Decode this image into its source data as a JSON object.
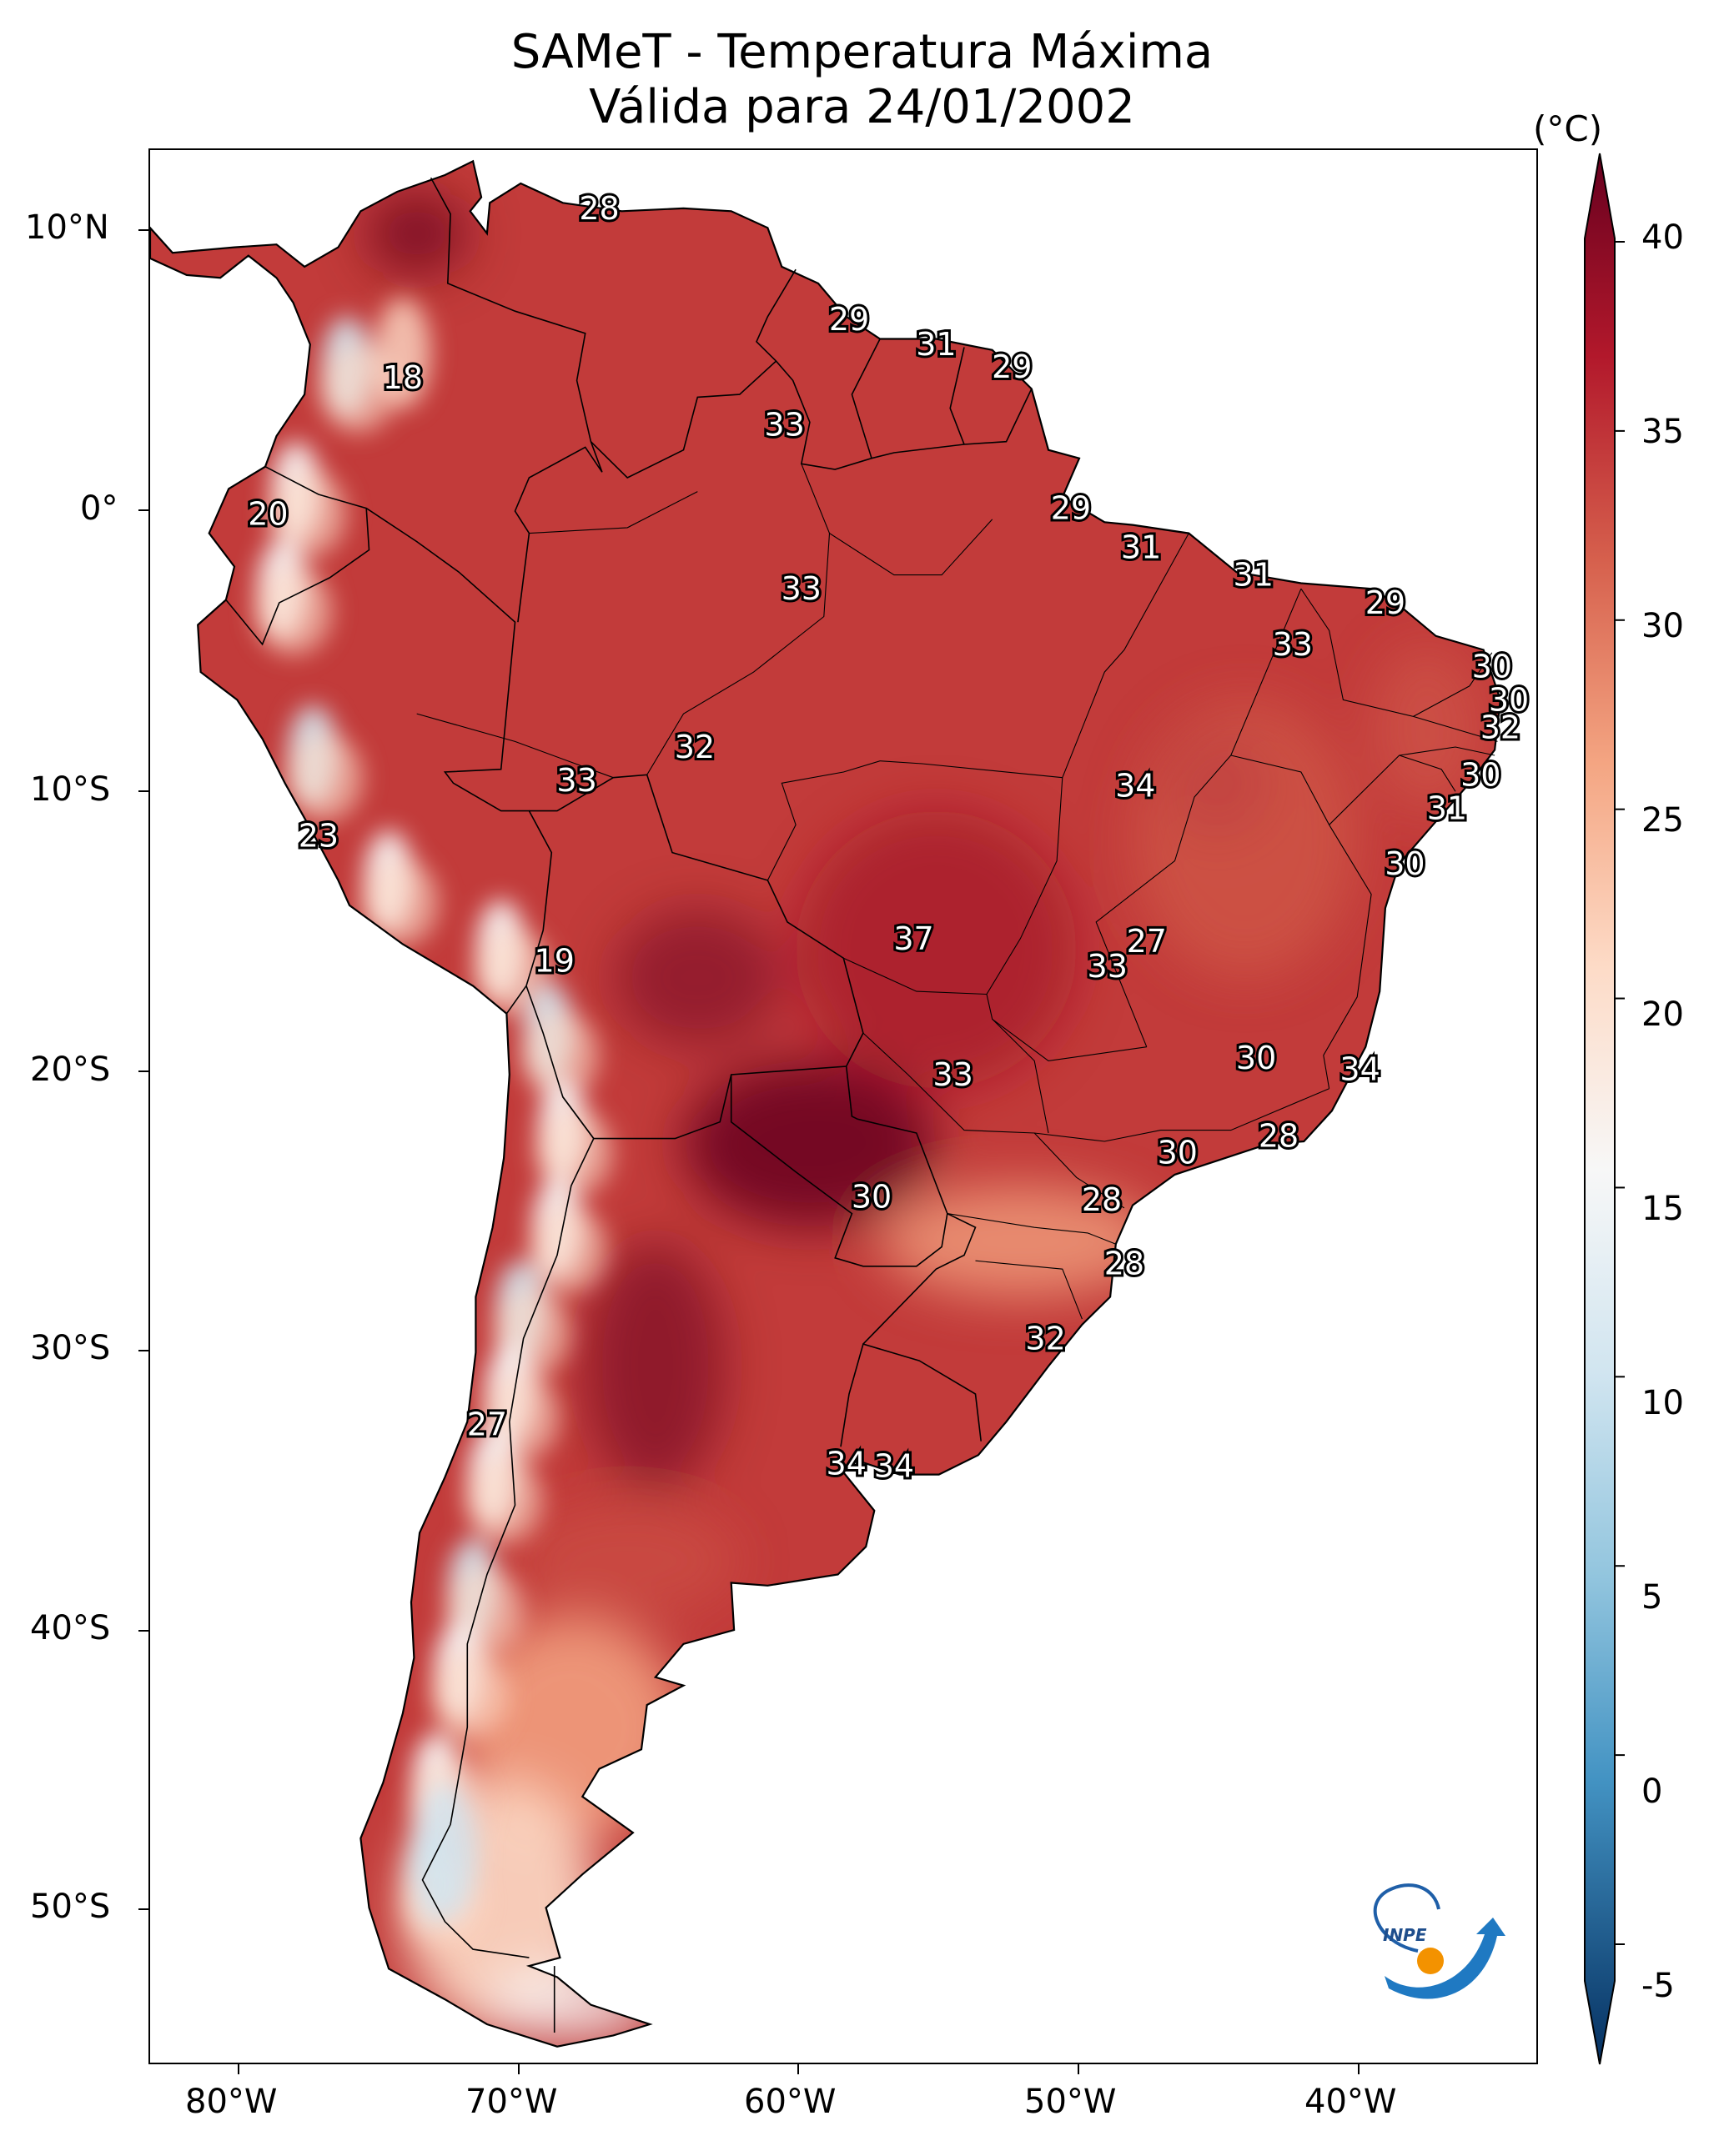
{
  "title": {
    "line1": "SAMeT - Temperatura Máxima",
    "line2": "Válida para 24/01/2002"
  },
  "axes": {
    "y_labels": [
      "10°N",
      "0°",
      "10°S",
      "20°S",
      "30°S",
      "40°S",
      "50°S"
    ],
    "x_labels": [
      "80°W",
      "70°W",
      "60°W",
      "50°W",
      "40°W"
    ]
  },
  "colorbar": {
    "unit": "(°C)",
    "ticks": [
      "40",
      "35",
      "30",
      "25",
      "20",
      "15",
      "10",
      "5",
      "0",
      "-5"
    ],
    "min": -7,
    "max": 40,
    "colors": {
      "c40": "#67001f",
      "c35": "#b2182b",
      "c30": "#d6604d",
      "c25": "#f4a582",
      "c20": "#fddbc7",
      "c15": "#f7f7f7",
      "c10": "#d1e5f0",
      "c5": "#92c5de",
      "c0": "#4393c3",
      "cm5": "#053061"
    }
  },
  "contour_labels": [
    {
      "text": "28",
      "lon": -67.0,
      "lat": 10.7
    },
    {
      "text": "18",
      "lon": -74.0,
      "lat": 4.6
    },
    {
      "text": "20",
      "lon": -78.8,
      "lat": -0.3
    },
    {
      "text": "29",
      "lon": -58.1,
      "lat": 6.7
    },
    {
      "text": "31",
      "lon": -55.0,
      "lat": 5.8
    },
    {
      "text": "29",
      "lon": -52.3,
      "lat": 5.0
    },
    {
      "text": "33",
      "lon": -60.4,
      "lat": 2.9
    },
    {
      "text": "29",
      "lon": -50.2,
      "lat": -0.1
    },
    {
      "text": "31",
      "lon": -47.7,
      "lat": -1.5
    },
    {
      "text": "31",
      "lon": -43.7,
      "lat": -2.5
    },
    {
      "text": "33",
      "lon": -59.8,
      "lat": -3.0
    },
    {
      "text": "29",
      "lon": -39.0,
      "lat": -3.5
    },
    {
      "text": "33",
      "lon": -42.3,
      "lat": -5.0
    },
    {
      "text": "30",
      "lon": -35.2,
      "lat": -5.8
    },
    {
      "text": "30",
      "lon": -34.6,
      "lat": -7.0
    },
    {
      "text": "32",
      "lon": -34.9,
      "lat": -8.0
    },
    {
      "text": "32",
      "lon": -63.6,
      "lat": -8.7
    },
    {
      "text": "33",
      "lon": -67.8,
      "lat": -9.9
    },
    {
      "text": "34",
      "lon": -47.9,
      "lat": -10.1
    },
    {
      "text": "30",
      "lon": -35.6,
      "lat": -9.7
    },
    {
      "text": "31",
      "lon": -36.8,
      "lat": -10.9
    },
    {
      "text": "23",
      "lon": -77.0,
      "lat": -11.9
    },
    {
      "text": "30",
      "lon": -38.3,
      "lat": -12.9
    },
    {
      "text": "37",
      "lon": -55.8,
      "lat": -15.6
    },
    {
      "text": "27",
      "lon": -47.5,
      "lat": -15.7
    },
    {
      "text": "33",
      "lon": -48.9,
      "lat": -16.6
    },
    {
      "text": "19",
      "lon": -68.6,
      "lat": -16.4
    },
    {
      "text": "30",
      "lon": -43.6,
      "lat": -19.9
    },
    {
      "text": "34",
      "lon": -39.9,
      "lat": -20.3
    },
    {
      "text": "33",
      "lon": -54.4,
      "lat": -20.5
    },
    {
      "text": "28",
      "lon": -42.8,
      "lat": -22.7
    },
    {
      "text": "30",
      "lon": -46.4,
      "lat": -23.3
    },
    {
      "text": "30",
      "lon": -57.3,
      "lat": -24.9
    },
    {
      "text": "28",
      "lon": -49.1,
      "lat": -25.0
    },
    {
      "text": "28",
      "lon": -48.3,
      "lat": -27.3
    },
    {
      "text": "32",
      "lon": -51.1,
      "lat": -30.0
    },
    {
      "text": "27",
      "lon": -71.0,
      "lat": -33.1
    },
    {
      "text": "34",
      "lon": -58.2,
      "lat": -34.5
    },
    {
      "text": "34",
      "lon": -56.5,
      "lat": -34.6
    }
  ]
}
